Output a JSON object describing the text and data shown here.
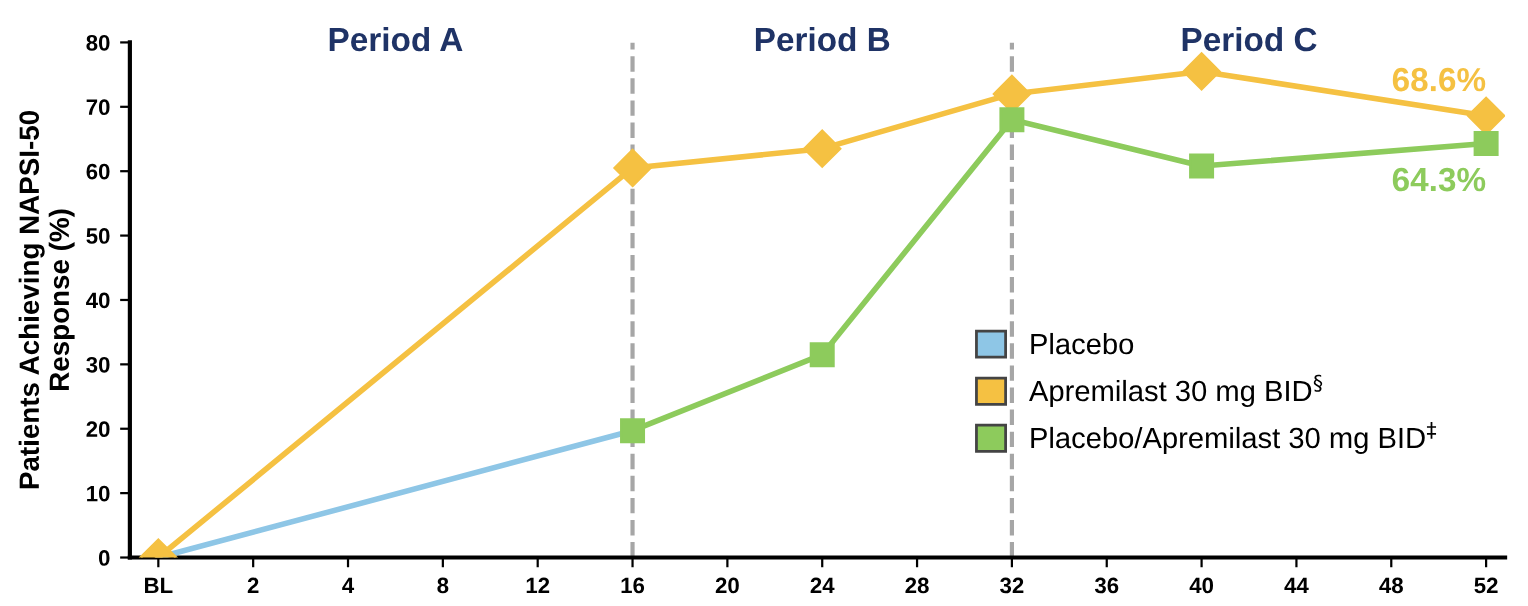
{
  "chart_data": {
    "type": "line",
    "ylabel": "Patients Achieving NAPSI-50\nResponse (%)",
    "categories": [
      "BL",
      "2",
      "4",
      "8",
      "12",
      "16",
      "20",
      "24",
      "28",
      "32",
      "36",
      "40",
      "44",
      "48",
      "52"
    ],
    "series": [
      {
        "name": "Placebo",
        "color": "#8ec6e6",
        "marker": "none",
        "values": [
          0,
          null,
          null,
          null,
          null,
          19.7,
          null,
          null,
          null,
          null,
          null,
          null,
          null,
          null,
          null
        ]
      },
      {
        "name": "Apremilast 30 mg BID$^{§}$",
        "color": "#f5c142",
        "marker": "diamond",
        "values": [
          0,
          null,
          null,
          null,
          null,
          60.5,
          null,
          63.5,
          null,
          72,
          null,
          75.5,
          null,
          null,
          68.6
        ],
        "value_labels": [
          null,
          null,
          null,
          null,
          null,
          null,
          null,
          null,
          null,
          null,
          null,
          null,
          null,
          null,
          "68.6%"
        ]
      },
      {
        "name": "Placebo/Apremilast 30 mg BID$^{‡}$",
        "color": "#8dcb5c",
        "marker": "square",
        "values": [
          null,
          null,
          null,
          null,
          null,
          19.7,
          null,
          31.5,
          null,
          68,
          null,
          60.8,
          null,
          null,
          64.3
        ],
        "value_labels": [
          null,
          null,
          null,
          null,
          null,
          null,
          null,
          null,
          null,
          null,
          null,
          null,
          null,
          null,
          "64.3%"
        ]
      }
    ],
    "ylim": [
      0,
      80
    ],
    "yticks": [
      0,
      10,
      20,
      30,
      40,
      50,
      60,
      70,
      80
    ],
    "ref_lines": [
      {
        "axis": "x",
        "value": "16",
        "color": "#a6a6a6",
        "line_style": "dashed"
      },
      {
        "axis": "x",
        "value": "32",
        "color": "#a6a6a6",
        "line_style": "dashed"
      }
    ],
    "annotations": [
      "Period A",
      "Period B",
      "Period C"
    ],
    "legend": "right",
    "grid": false
  }
}
